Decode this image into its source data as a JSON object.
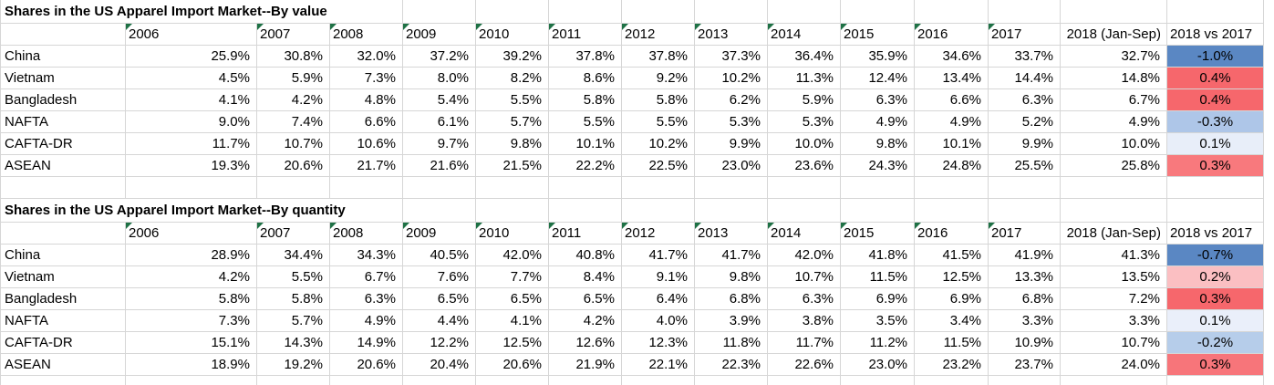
{
  "colors": {
    "gridline": "#d6d6d6",
    "text": "#000000",
    "indicator_green": "#1e7145"
  },
  "tables": [
    {
      "title": "Shares in the US Apparel Import Market--By value",
      "columns": [
        "2006",
        "2007",
        "2008",
        "2009",
        "2010",
        "2011",
        "2012",
        "2013",
        "2014",
        "2015",
        "2016",
        "2017",
        "2018 (Jan-Sep)"
      ],
      "delta_column": "2018 vs 2017",
      "rows": [
        {
          "label": "China",
          "values": [
            "25.9%",
            "30.8%",
            "32.0%",
            "37.2%",
            "39.2%",
            "37.8%",
            "37.8%",
            "37.3%",
            "36.4%",
            "35.9%",
            "34.6%",
            "33.7%",
            "32.7%"
          ],
          "delta": "-1.0%",
          "delta_bg": "#5a87c3"
        },
        {
          "label": "Vietnam",
          "values": [
            "4.5%",
            "5.9%",
            "7.3%",
            "8.0%",
            "8.2%",
            "8.6%",
            "9.2%",
            "10.2%",
            "11.3%",
            "12.4%",
            "13.4%",
            "14.4%",
            "14.8%"
          ],
          "delta": "0.4%",
          "delta_bg": "#f6676c"
        },
        {
          "label": "Bangladesh",
          "values": [
            "4.1%",
            "4.2%",
            "4.8%",
            "5.4%",
            "5.5%",
            "5.8%",
            "5.8%",
            "6.2%",
            "5.9%",
            "6.3%",
            "6.6%",
            "6.3%",
            "6.7%"
          ],
          "delta": "0.4%",
          "delta_bg": "#f6676c"
        },
        {
          "label": "NAFTA",
          "values": [
            "9.0%",
            "7.4%",
            "6.6%",
            "6.1%",
            "5.7%",
            "5.5%",
            "5.5%",
            "5.3%",
            "5.3%",
            "4.9%",
            "4.9%",
            "5.2%",
            "4.9%"
          ],
          "delta": "-0.3%",
          "delta_bg": "#aec6e8"
        },
        {
          "label": "CAFTA-DR",
          "values": [
            "11.7%",
            "10.7%",
            "10.6%",
            "9.7%",
            "9.8%",
            "10.1%",
            "10.2%",
            "9.9%",
            "10.0%",
            "9.8%",
            "10.1%",
            "9.9%",
            "10.0%"
          ],
          "delta": "0.1%",
          "delta_bg": "#e8eef9"
        },
        {
          "label": "ASEAN",
          "values": [
            "19.3%",
            "20.6%",
            "21.7%",
            "21.6%",
            "21.5%",
            "22.2%",
            "22.5%",
            "23.0%",
            "23.6%",
            "24.3%",
            "24.8%",
            "25.5%",
            "25.8%"
          ],
          "delta": "0.3%",
          "delta_bg": "#f8797d"
        }
      ]
    },
    {
      "title": "Shares in the US Apparel Import Market--By quantity",
      "columns": [
        "2006",
        "2007",
        "2008",
        "2009",
        "2010",
        "2011",
        "2012",
        "2013",
        "2014",
        "2015",
        "2016",
        "2017",
        "2018 (Jan-Sep)"
      ],
      "delta_column": "2018 vs 2017",
      "rows": [
        {
          "label": "China",
          "values": [
            "28.9%",
            "34.4%",
            "34.3%",
            "40.5%",
            "42.0%",
            "40.8%",
            "41.7%",
            "41.7%",
            "42.0%",
            "41.8%",
            "41.5%",
            "41.9%",
            "41.3%"
          ],
          "delta": "-0.7%",
          "delta_bg": "#5a87c3"
        },
        {
          "label": "Vietnam",
          "values": [
            "4.2%",
            "5.5%",
            "6.7%",
            "7.6%",
            "7.7%",
            "8.4%",
            "9.1%",
            "9.8%",
            "10.7%",
            "11.5%",
            "12.5%",
            "13.3%",
            "13.5%"
          ],
          "delta": "0.2%",
          "delta_bg": "#fbbfc2"
        },
        {
          "label": "Bangladesh",
          "values": [
            "5.8%",
            "5.8%",
            "6.3%",
            "6.5%",
            "6.5%",
            "6.5%",
            "6.4%",
            "6.8%",
            "6.3%",
            "6.9%",
            "6.9%",
            "6.8%",
            "7.2%"
          ],
          "delta": "0.3%",
          "delta_bg": "#f6676c"
        },
        {
          "label": "NAFTA",
          "values": [
            "7.3%",
            "5.7%",
            "4.9%",
            "4.4%",
            "4.1%",
            "4.2%",
            "4.0%",
            "3.9%",
            "3.8%",
            "3.5%",
            "3.4%",
            "3.3%",
            "3.3%"
          ],
          "delta": "0.1%",
          "delta_bg": "#eaeffa"
        },
        {
          "label": "CAFTA-DR",
          "values": [
            "15.1%",
            "14.3%",
            "14.9%",
            "12.2%",
            "12.5%",
            "12.6%",
            "12.3%",
            "11.8%",
            "11.7%",
            "11.2%",
            "11.5%",
            "10.9%",
            "10.7%"
          ],
          "delta": "-0.2%",
          "delta_bg": "#b6cdea"
        },
        {
          "label": "ASEAN",
          "values": [
            "18.9%",
            "19.2%",
            "20.6%",
            "20.4%",
            "20.6%",
            "21.9%",
            "22.1%",
            "22.3%",
            "22.6%",
            "23.0%",
            "23.2%",
            "23.7%",
            "24.0%"
          ],
          "delta": "0.3%",
          "delta_bg": "#f7757a"
        }
      ]
    }
  ]
}
